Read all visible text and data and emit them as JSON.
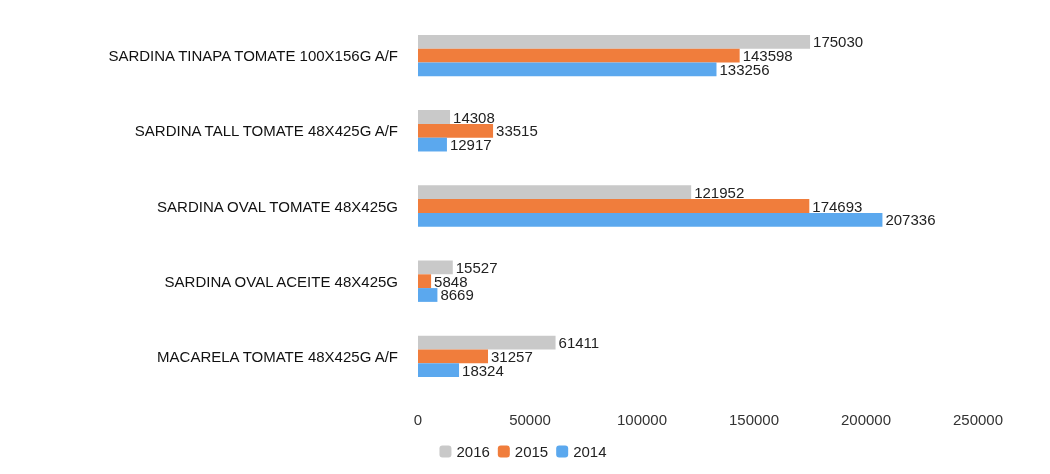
{
  "chart_data": {
    "type": "bar",
    "orientation": "horizontal",
    "categories": [
      "SARDINA TINAPA TOMATE 100X156G A/F",
      "SARDINA TALL TOMATE 48X425G A/F",
      "SARDINA OVAL TOMATE 48X425G",
      "SARDINA OVAL ACEITE 48X425G",
      "MACARELA TOMATE 48X425G A/F"
    ],
    "series": [
      {
        "name": "2016",
        "color": "#c9c9c9",
        "values": [
          175030,
          14308,
          121952,
          15527,
          61411
        ]
      },
      {
        "name": "2015",
        "color": "#f07d3c",
        "values": [
          143598,
          33515,
          174693,
          5848,
          31257
        ]
      },
      {
        "name": "2014",
        "color": "#5ba8ee",
        "values": [
          133256,
          12917,
          207336,
          8669,
          18324
        ]
      }
    ],
    "xlim": [
      0,
      250000
    ],
    "xticks": [
      0,
      50000,
      100000,
      150000,
      200000,
      250000
    ],
    "grid": false,
    "legend": "bottom",
    "data_labels": true
  }
}
